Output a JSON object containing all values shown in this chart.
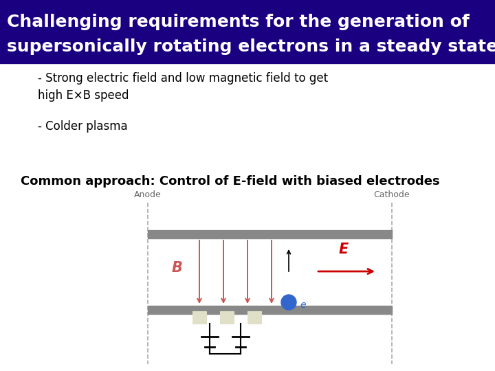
{
  "title_line1": "Challenging requirements for the generation of",
  "title_line2": "supersonically rotating electrons in a steady state",
  "title_bg_color": "#1a0080",
  "title_text_color": "#ffffff",
  "title_fontsize": 18,
  "bullet1_line1": "- Strong electric field and low magnetic field to get",
  "bullet1_line2": "high E×B speed",
  "bullet2": "- Colder plasma",
  "common_approach": "Common approach: Control of E-field with biased electrodes",
  "body_bg": "#ffffff",
  "body_text_color": "#000000",
  "bullet_fontsize": 12,
  "approach_fontsize": 13,
  "diagram": {
    "anode_label": "Anode",
    "cathode_label": "Cathode",
    "B_label": "B",
    "E_label": "E",
    "e_label": "e",
    "plate_color": "#888888",
    "arrow_color": "#cc5555",
    "electrode_color": "#e0e0c8",
    "electron_color": "#3366cc",
    "E_arrow_color": "#cc0000",
    "dashed_color": "#aaaaaa"
  }
}
